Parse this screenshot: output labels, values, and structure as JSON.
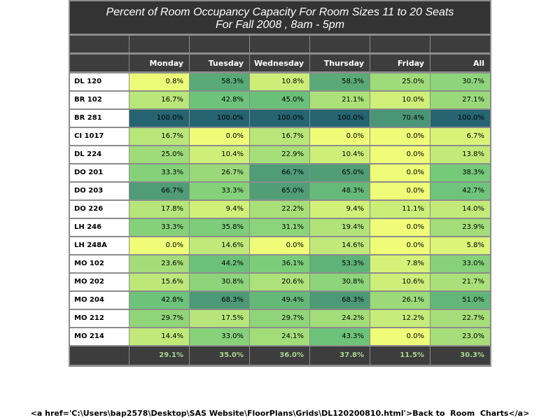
{
  "title_line1": "Percent of Room Occupancy Capacity For Room Sizes 11 to 20 Seats",
  "title_line2": "For Fall 2008  , 8am - 5pm",
  "footer_text": "<a href='C:\\Users\\bap2578\\Desktop\\SAS Website\\FloorPlans\\Grids\\DL120200810.html'>Back to  Room  Charts</a>",
  "colors": {
    "title_bg": "#333333",
    "header_bg": "#3d3d3d",
    "grid_line": "#8c8c8c",
    "total_text": "#a8d890",
    "scale_low": "#eefc78",
    "scale_mid": "#70c87a",
    "scale_high": "#256470"
  },
  "chart_data": {
    "type": "heatmap",
    "columns": [
      "Monday",
      "Tuesday",
      "Wednesday",
      "Thursday",
      "Friday",
      "All"
    ],
    "rows": [
      "DL 120",
      "BR 102",
      "BR 281",
      "CI 1017",
      "DL 224",
      "DO 201",
      "DO 203",
      "DO 226",
      "LH 246",
      "LH 248A",
      "MO 102",
      "MO 202",
      "MO 204",
      "MO 212",
      "MO 214"
    ],
    "values": [
      [
        0.8,
        58.3,
        10.8,
        58.3,
        25.0,
        30.7
      ],
      [
        16.7,
        42.8,
        45.0,
        21.1,
        10.0,
        27.1
      ],
      [
        100.0,
        100.0,
        100.0,
        100.0,
        70.4,
        100.0
      ],
      [
        16.7,
        0.0,
        16.7,
        0.0,
        0.0,
        6.7
      ],
      [
        25.0,
        10.4,
        22.9,
        10.4,
        0.0,
        13.8
      ],
      [
        33.3,
        26.7,
        66.7,
        65.0,
        0.0,
        38.3
      ],
      [
        66.7,
        33.3,
        65.0,
        48.3,
        0.0,
        42.7
      ],
      [
        17.8,
        9.4,
        22.2,
        9.4,
        11.1,
        14.0
      ],
      [
        33.3,
        35.8,
        31.1,
        19.4,
        0.0,
        23.9
      ],
      [
        0.0,
        14.6,
        0.0,
        14.6,
        0.0,
        5.8
      ],
      [
        23.6,
        44.2,
        36.1,
        53.3,
        7.8,
        33.0
      ],
      [
        15.6,
        30.8,
        20.6,
        30.8,
        10.6,
        21.7
      ],
      [
        42.8,
        68.3,
        49.4,
        68.3,
        26.1,
        51.0
      ],
      [
        29.7,
        17.5,
        29.7,
        24.2,
        12.2,
        22.7
      ],
      [
        14.4,
        33.0,
        24.1,
        43.3,
        0.0,
        23.0
      ]
    ],
    "display": [
      [
        "0.8%",
        "58.3%",
        "10.8%",
        "58.3%",
        "25.0%",
        "30.7%"
      ],
      [
        "16.7%",
        "42.8%",
        "45.0%",
        "21.1%",
        "10.0%",
        "27.1%"
      ],
      [
        "100.0%",
        "100.0%",
        "100.0%",
        "100.0%",
        "70.4%",
        "100.0%"
      ],
      [
        "16.7%",
        "0.0%",
        "16.7%",
        "0.0%",
        "0.0%",
        "6.7%"
      ],
      [
        "25.0%",
        "10.4%",
        "22.9%",
        "10.4%",
        "0.0%",
        "13.8%"
      ],
      [
        "33.3%",
        "26.7%",
        "66.7%",
        "65.0%",
        "0.0%",
        "38.3%"
      ],
      [
        "66.7%",
        "33.3%",
        "65.0%",
        "48.3%",
        "0.0%",
        "42.7%"
      ],
      [
        "17.8%",
        "9.4%",
        "22.2%",
        "9.4%",
        "11.1%",
        "14.0%"
      ],
      [
        "33.3%",
        "35.8%",
        "31.1%",
        "19.4%",
        "0.0%",
        "23.9%"
      ],
      [
        "0.0%",
        "14.6%",
        "0.0%",
        "14.6%",
        "0.0%",
        "5.8%"
      ],
      [
        "23.6%",
        "44.2%",
        "36.1%",
        "53.3%",
        "7.8%",
        "33.0%"
      ],
      [
        "15.6%",
        "30.8%",
        "20.6%",
        "30.8%",
        "10.6%",
        "21.7%"
      ],
      [
        "42.8%",
        "68.3%",
        "49.4%",
        "68.3%",
        "26.1%",
        "51.0%"
      ],
      [
        "29.7%",
        "17.5%",
        "29.7%",
        "24.2%",
        "12.2%",
        "22.7%"
      ],
      [
        "14.4%",
        "33.0%",
        "24.1%",
        "43.3%",
        "0.0%",
        "23.0%"
      ]
    ],
    "totals": [
      29.1,
      35.0,
      36.0,
      37.8,
      11.5,
      30.3
    ],
    "totals_display": [
      "29.1%",
      "35.0%",
      "36.0%",
      "37.8%",
      "11.5%",
      "30.3%"
    ],
    "grid": true
  }
}
